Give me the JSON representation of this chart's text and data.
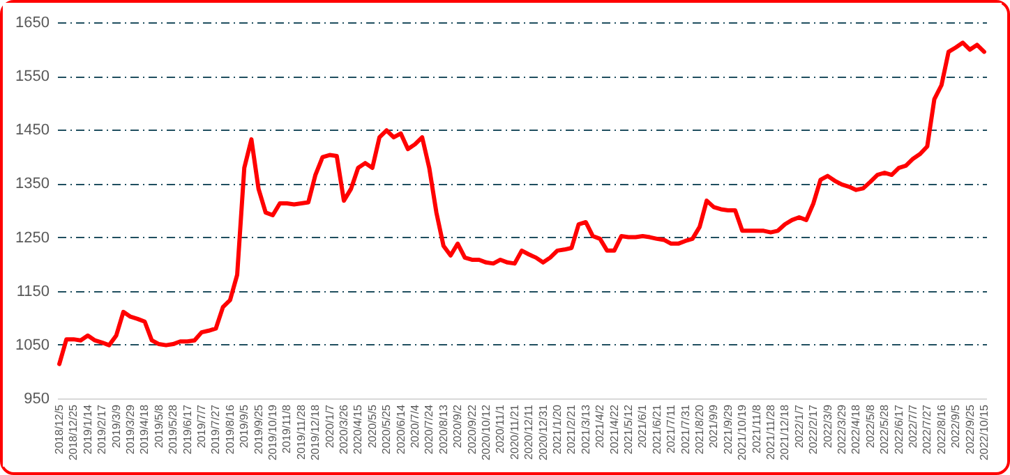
{
  "chart_data": {
    "type": "line",
    "categories": [
      "2018/12/5",
      null,
      "2018/12/25",
      null,
      "2019/1/14",
      null,
      "2019/2/17",
      null,
      "2019/3/9",
      null,
      "2019/3/29",
      null,
      "2019/4/18",
      null,
      "2019/5/8",
      null,
      "2019/5/28",
      null,
      "2019/6/17",
      null,
      "2019/7/7",
      null,
      "2019/7/27",
      null,
      "2019/8/16",
      null,
      "2019/9/5",
      null,
      "2019/9/25",
      null,
      "2019/10/19",
      null,
      "2019/11/8",
      null,
      "2019/11/28",
      null,
      "2019/12/18",
      null,
      "2020/1/7",
      null,
      "2020/3/26",
      null,
      "2020/4/15",
      null,
      "2020/5/5",
      null,
      "2020/5/25",
      null,
      "2020/6/14",
      null,
      "2020/7/4",
      null,
      "2020/7/24",
      null,
      "2020/8/13",
      null,
      "2020/9/2",
      null,
      "2020/9/22",
      null,
      "2020/10/12",
      null,
      "2020/11/1",
      null,
      "2020/11/21",
      null,
      "2020/12/11",
      null,
      "2020/12/31",
      null,
      "2021/1/20",
      null,
      "2021/2/21",
      null,
      "2021/3/13",
      null,
      "2021/4/2",
      null,
      "2021/4/22",
      null,
      "2021/5/12",
      null,
      "2021/6/1",
      null,
      "2021/6/21",
      null,
      "2021/7/11",
      null,
      "2021/7/31",
      null,
      "2021/8/20",
      null,
      "2021/9/9",
      null,
      "2021/9/29",
      null,
      "2021/10/19",
      null,
      "2021/11/8",
      null,
      "2021/11/28",
      null,
      "2021/12/18",
      null,
      "2022/1/7",
      null,
      "2022/2/17",
      null,
      "2022/3/9",
      null,
      "2022/3/29",
      null,
      "2022/4/18",
      null,
      "2022/5/8",
      null,
      "2022/5/28",
      null,
      "2022/6/17",
      null,
      "2022/7/7",
      null,
      "2022/7/27",
      null,
      "2022/8/16",
      null,
      "2022/9/5",
      null,
      "2022/9/25",
      null,
      "2022/10/15"
    ],
    "series": [
      {
        "color": "#ff0000",
        "values": [
          1014,
          1060,
          1060,
          1058,
          1067,
          1058,
          1054,
          1049,
          1067,
          1111,
          1102,
          1098,
          1093,
          1058,
          1051,
          1049,
          1051,
          1056,
          1056,
          1058,
          1073,
          1076,
          1080,
          1120,
          1133,
          1180,
          1379,
          1432,
          1340,
          1296,
          1291,
          1313,
          1313,
          1311,
          1313,
          1315,
          1366,
          1399,
          1403,
          1401,
          1318,
          1340,
          1379,
          1388,
          1379,
          1436,
          1449,
          1436,
          1443,
          1414,
          1423,
          1436,
          1379,
          1296,
          1234,
          1216,
          1238,
          1212,
          1208,
          1208,
          1203,
          1201,
          1208,
          1203,
          1201,
          1225,
          1218,
          1212,
          1203,
          1212,
          1225,
          1227,
          1230,
          1274,
          1278,
          1252,
          1247,
          1225,
          1225,
          1252,
          1250,
          1250,
          1252,
          1250,
          1247,
          1245,
          1238,
          1238,
          1243,
          1247,
          1269,
          1318,
          1306,
          1302,
          1300,
          1300,
          1262,
          1262,
          1262,
          1262,
          1259,
          1262,
          1274,
          1282,
          1287,
          1282,
          1313,
          1357,
          1364,
          1355,
          1348,
          1344,
          1338,
          1341,
          1353,
          1366,
          1370,
          1366,
          1379,
          1383,
          1396,
          1405,
          1419,
          1507,
          1533,
          1595,
          1603,
          1612,
          1599,
          1608,
          1595
        ]
      }
    ],
    "ylim": [
      950,
      1650
    ],
    "yticks": [
      950,
      1050,
      1150,
      1250,
      1350,
      1450,
      1550,
      1650
    ],
    "grid": "y",
    "line_style": "solid",
    "marker": "none"
  }
}
